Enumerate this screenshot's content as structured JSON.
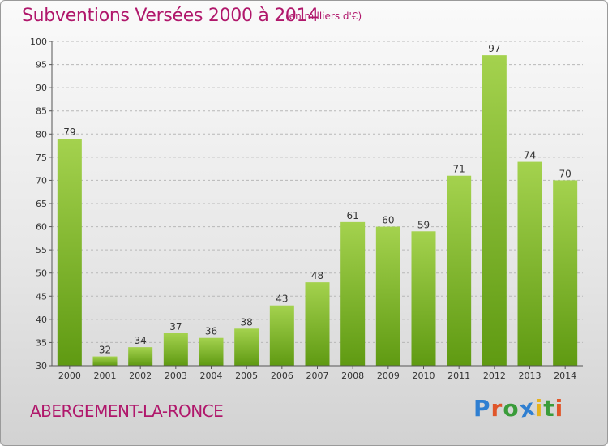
{
  "header": {
    "title": "Subventions Versées 2000 à 2014",
    "subtitle": "(en milliers d'€)"
  },
  "footer": {
    "town": "ABERGEMENT-LA-RONCE",
    "logo_letters": [
      "P",
      "r",
      "o",
      "x",
      "i",
      "t",
      "i"
    ],
    "logo_colors": [
      "#2f7fd1",
      "#e0562a",
      "#3a9c3a",
      "#2f7fd1",
      "#e6b21e",
      "#3a9c3a",
      "#e0562a"
    ]
  },
  "colors": {
    "bar_top": "#a4d24e",
    "bar_bottom": "#5f9a12",
    "grid": "#b8b8b8",
    "title": "#b0176b"
  },
  "chart_data": {
    "type": "bar",
    "title": "Subventions Versées 2000 à 2014",
    "xlabel": "",
    "ylabel": "",
    "categories": [
      "2000",
      "2001",
      "2002",
      "2003",
      "2004",
      "2005",
      "2006",
      "2007",
      "2008",
      "2009",
      "2010",
      "2011",
      "2012",
      "2013",
      "2014"
    ],
    "values": [
      79,
      32,
      34,
      37,
      36,
      38,
      43,
      48,
      61,
      60,
      59,
      71,
      97,
      74,
      70
    ],
    "ylim": [
      30,
      100
    ],
    "yticks": [
      30,
      35,
      40,
      45,
      50,
      55,
      60,
      65,
      70,
      75,
      80,
      85,
      90,
      95,
      100
    ],
    "grid": true,
    "grid_style": "dashed-horizontal"
  }
}
